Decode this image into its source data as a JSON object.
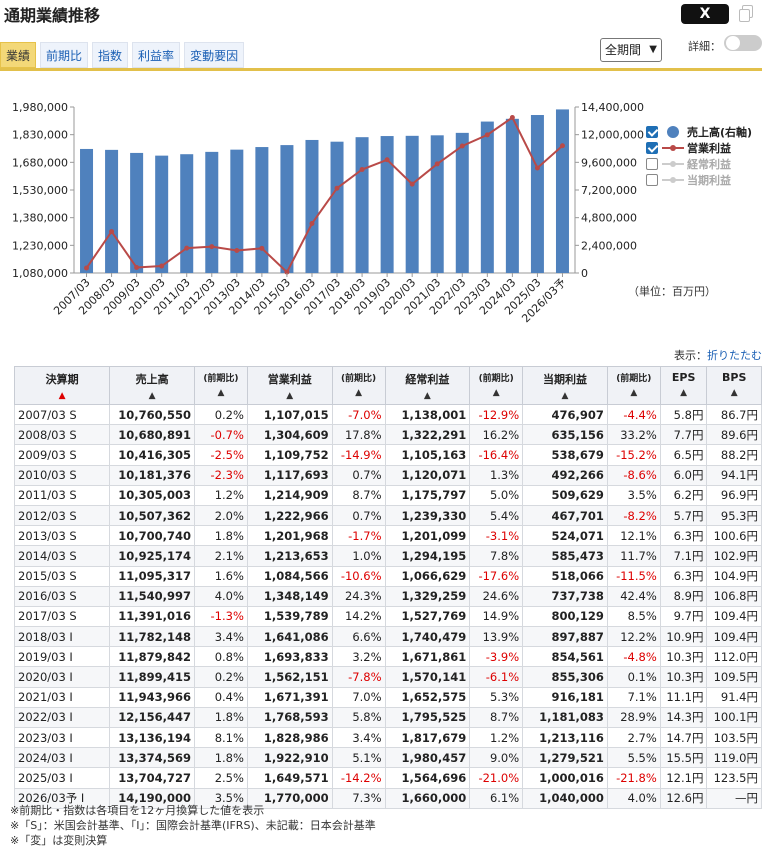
{
  "title": "通期業績推移",
  "share_label": "X",
  "tabs": [
    {
      "label": "業績",
      "active": true
    },
    {
      "label": "前期比",
      "active": false
    },
    {
      "label": "指数",
      "active": false
    },
    {
      "label": "利益率",
      "active": false
    },
    {
      "label": "変動要因",
      "active": false
    }
  ],
  "period_select": {
    "value": "全期間"
  },
  "detail_toggle": {
    "label": "詳細：",
    "on": false
  },
  "legend": [
    {
      "label": "売上高(右軸)",
      "checked": true,
      "marker": "bar"
    },
    {
      "label": "営業利益",
      "checked": true,
      "marker": "line"
    },
    {
      "label": "経常利益",
      "checked": false,
      "marker": "line"
    },
    {
      "label": "当期利益",
      "checked": false,
      "marker": "line"
    }
  ],
  "unit_text": "（単位：百万円）",
  "display_text": "表示：",
  "collapse_link": "折りたたむ",
  "colors": {
    "bar": "#4f81bd",
    "line": "#b94a48",
    "tab_active": "#f3d878",
    "negative": "#dd0000",
    "accent_line": "#e2c04b"
  },
  "chart_data": {
    "type": "bar",
    "categories": [
      "2007/03",
      "2008/03",
      "2009/03",
      "2010/03",
      "2011/03",
      "2012/03",
      "2013/03",
      "2014/03",
      "2015/03",
      "2016/03",
      "2017/03",
      "2018/03",
      "2019/03",
      "2020/03",
      "2021/03",
      "2022/03",
      "2023/03",
      "2024/03",
      "2025/03",
      "2026/03予"
    ],
    "series": [
      {
        "name": "売上高(右軸)",
        "type": "bar",
        "axis": "right",
        "values": [
          10760550,
          10680891,
          10416305,
          10181376,
          10305003,
          10507362,
          10700740,
          10925174,
          11095317,
          11540997,
          11391016,
          11782148,
          11879842,
          11899415,
          11943966,
          12156447,
          13136194,
          13374569,
          13704727,
          14190000
        ]
      },
      {
        "name": "営業利益",
        "type": "line",
        "axis": "left",
        "values": [
          1107015,
          1304609,
          1109752,
          1117693,
          1214909,
          1222966,
          1201968,
          1213653,
          1084566,
          1348149,
          1539789,
          1641086,
          1693833,
          1562151,
          1671391,
          1768593,
          1828986,
          1922910,
          1649571,
          1770000
        ]
      }
    ],
    "y_left": {
      "min": 1080000,
      "max": 1980000,
      "ticks": [
        "1,080,000",
        "1,230,000",
        "1,380,000",
        "1,530,000",
        "1,680,000",
        "1,830,000",
        "1,980,000"
      ]
    },
    "y_right": {
      "min": 0,
      "max": 14400000,
      "ticks": [
        "0",
        "2,400,000",
        "4,800,000",
        "7,200,000",
        "9,600,000",
        "12,000,000",
        "14,400,000"
      ]
    },
    "grid": false,
    "legend_position": "right"
  },
  "table": {
    "headers": [
      {
        "label": "決算期",
        "arrow": "▲",
        "red": true,
        "small": false
      },
      {
        "label": "売上高",
        "arrow": "▲",
        "red": false,
        "small": false
      },
      {
        "label": "(前期比)",
        "arrow": "▲",
        "red": false,
        "small": true
      },
      {
        "label": "営業利益",
        "arrow": "▲",
        "red": false,
        "small": false
      },
      {
        "label": "(前期比)",
        "arrow": "▲",
        "red": false,
        "small": true
      },
      {
        "label": "経常利益",
        "arrow": "▲",
        "red": false,
        "small": false
      },
      {
        "label": "(前期比)",
        "arrow": "▲",
        "red": false,
        "small": true
      },
      {
        "label": "当期利益",
        "arrow": "▲",
        "red": false,
        "small": false
      },
      {
        "label": "(前期比)",
        "arrow": "▲",
        "red": false,
        "small": true
      },
      {
        "label": "EPS",
        "arrow": "▲",
        "red": false,
        "small": false
      },
      {
        "label": "BPS",
        "arrow": "▲",
        "red": false,
        "small": false
      }
    ],
    "rows": [
      [
        "2007/03 S",
        "10,760,550",
        "0.2%",
        "1,107,015",
        "-7.0%",
        "1,138,001",
        "-12.9%",
        "476,907",
        "-4.4%",
        "5.8円",
        "86.7円"
      ],
      [
        "2008/03 S",
        "10,680,891",
        "-0.7%",
        "1,304,609",
        "17.8%",
        "1,322,291",
        "16.2%",
        "635,156",
        "33.2%",
        "7.7円",
        "89.6円"
      ],
      [
        "2009/03 S",
        "10,416,305",
        "-2.5%",
        "1,109,752",
        "-14.9%",
        "1,105,163",
        "-16.4%",
        "538,679",
        "-15.2%",
        "6.5円",
        "88.2円"
      ],
      [
        "2010/03 S",
        "10,181,376",
        "-2.3%",
        "1,117,693",
        "0.7%",
        "1,120,071",
        "1.3%",
        "492,266",
        "-8.6%",
        "6.0円",
        "94.1円"
      ],
      [
        "2011/03 S",
        "10,305,003",
        "1.2%",
        "1,214,909",
        "8.7%",
        "1,175,797",
        "5.0%",
        "509,629",
        "3.5%",
        "6.2円",
        "96.9円"
      ],
      [
        "2012/03 S",
        "10,507,362",
        "2.0%",
        "1,222,966",
        "0.7%",
        "1,239,330",
        "5.4%",
        "467,701",
        "-8.2%",
        "5.7円",
        "95.3円"
      ],
      [
        "2013/03 S",
        "10,700,740",
        "1.8%",
        "1,201,968",
        "-1.7%",
        "1,201,099",
        "-3.1%",
        "524,071",
        "12.1%",
        "6.3円",
        "100.6円"
      ],
      [
        "2014/03 S",
        "10,925,174",
        "2.1%",
        "1,213,653",
        "1.0%",
        "1,294,195",
        "7.8%",
        "585,473",
        "11.7%",
        "7.1円",
        "102.9円"
      ],
      [
        "2015/03 S",
        "11,095,317",
        "1.6%",
        "1,084,566",
        "-10.6%",
        "1,066,629",
        "-17.6%",
        "518,066",
        "-11.5%",
        "6.3円",
        "104.9円"
      ],
      [
        "2016/03 S",
        "11,540,997",
        "4.0%",
        "1,348,149",
        "24.3%",
        "1,329,259",
        "24.6%",
        "737,738",
        "42.4%",
        "8.9円",
        "106.8円"
      ],
      [
        "2017/03 S",
        "11,391,016",
        "-1.3%",
        "1,539,789",
        "14.2%",
        "1,527,769",
        "14.9%",
        "800,129",
        "8.5%",
        "9.7円",
        "109.4円"
      ],
      [
        "2018/03 I",
        "11,782,148",
        "3.4%",
        "1,641,086",
        "6.6%",
        "1,740,479",
        "13.9%",
        "897,887",
        "12.2%",
        "10.9円",
        "109.4円"
      ],
      [
        "2019/03 I",
        "11,879,842",
        "0.8%",
        "1,693,833",
        "3.2%",
        "1,671,861",
        "-3.9%",
        "854,561",
        "-4.8%",
        "10.3円",
        "112.0円"
      ],
      [
        "2020/03 I",
        "11,899,415",
        "0.2%",
        "1,562,151",
        "-7.8%",
        "1,570,141",
        "-6.1%",
        "855,306",
        "0.1%",
        "10.3円",
        "109.5円"
      ],
      [
        "2021/03 I",
        "11,943,966",
        "0.4%",
        "1,671,391",
        "7.0%",
        "1,652,575",
        "5.3%",
        "916,181",
        "7.1%",
        "11.1円",
        "91.4円"
      ],
      [
        "2022/03 I",
        "12,156,447",
        "1.8%",
        "1,768,593",
        "5.8%",
        "1,795,525",
        "8.7%",
        "1,181,083",
        "28.9%",
        "14.3円",
        "100.1円"
      ],
      [
        "2023/03 I",
        "13,136,194",
        "8.1%",
        "1,828,986",
        "3.4%",
        "1,817,679",
        "1.2%",
        "1,213,116",
        "2.7%",
        "14.7円",
        "103.5円"
      ],
      [
        "2024/03 I",
        "13,374,569",
        "1.8%",
        "1,922,910",
        "5.1%",
        "1,980,457",
        "9.0%",
        "1,279,521",
        "5.5%",
        "15.5円",
        "119.0円"
      ],
      [
        "2025/03 I",
        "13,704,727",
        "2.5%",
        "1,649,571",
        "-14.2%",
        "1,564,696",
        "-21.0%",
        "1,000,016",
        "-21.8%",
        "12.1円",
        "123.5円"
      ],
      [
        "2026/03予 I",
        "14,190,000",
        "3.5%",
        "1,770,000",
        "7.3%",
        "1,660,000",
        "6.1%",
        "1,040,000",
        "4.0%",
        "12.6円",
        "—円"
      ]
    ]
  },
  "notes": [
    "※前期比・指数は各項目を12ヶ月換算した値を表示",
    "※「S」：米国会計基準、「I」：国際会計基準(IFRS)、未記載：日本会計基準",
    "※「変」は変則決算"
  ]
}
